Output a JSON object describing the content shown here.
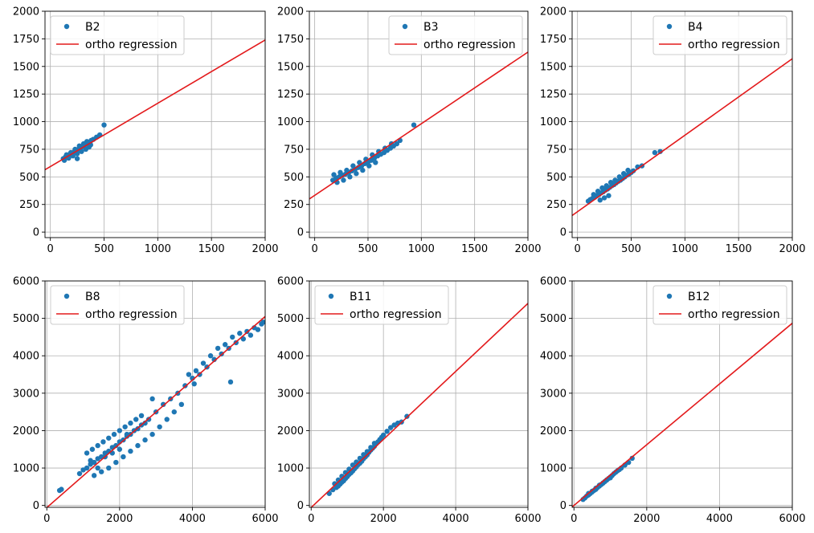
{
  "colors": {
    "scatter": "#1f77b4",
    "regression": "#e31a1c",
    "grid": "#b0b0b0",
    "axis": "#000000",
    "legend_border": "#cccccc"
  },
  "chart_data": [
    {
      "type": "scatter",
      "panel": "top-left",
      "xlim": [
        -50,
        2000
      ],
      "ylim": [
        -50,
        2000
      ],
      "xticks": [
        0,
        500,
        1000,
        1500,
        2000
      ],
      "yticks": [
        0,
        250,
        500,
        750,
        1000,
        1250,
        1500,
        1750,
        2000
      ],
      "grid": true,
      "legend_position": "top-left",
      "series": [
        {
          "name": "B2",
          "kind": "points",
          "x": [
            120,
            140,
            160,
            180,
            200,
            220,
            240,
            260,
            280,
            300,
            320,
            350,
            380,
            400,
            430,
            460,
            500,
            130,
            170,
            210,
            250,
            290,
            330,
            360,
            150,
            190,
            230,
            270,
            310,
            340,
            375,
            250
          ],
          "y": [
            665,
            680,
            690,
            705,
            715,
            725,
            740,
            750,
            760,
            775,
            790,
            810,
            830,
            840,
            860,
            880,
            970,
            650,
            670,
            690,
            710,
            730,
            750,
            770,
            700,
            720,
            750,
            780,
            800,
            820,
            790,
            665
          ]
        },
        {
          "name": "ortho regression",
          "kind": "line",
          "x": [
            -50,
            2000
          ],
          "y": [
            565,
            1740
          ]
        }
      ]
    },
    {
      "type": "scatter",
      "panel": "top-middle",
      "xlim": [
        -50,
        2000
      ],
      "ylim": [
        -50,
        2000
      ],
      "xticks": [
        0,
        500,
        1000,
        1500,
        2000
      ],
      "yticks": [
        0,
        250,
        500,
        750,
        1000,
        1250,
        1500,
        1750,
        2000
      ],
      "grid": true,
      "legend_position": "top-right",
      "series": [
        {
          "name": "B3",
          "kind": "points",
          "x": [
            170,
            200,
            230,
            260,
            290,
            320,
            350,
            380,
            410,
            440,
            470,
            500,
            530,
            560,
            590,
            620,
            650,
            680,
            710,
            740,
            770,
            800,
            930,
            180,
            240,
            300,
            360,
            420,
            480,
            540,
            600,
            660,
            720,
            210,
            270,
            330,
            390,
            450,
            510,
            570
          ],
          "y": [
            470,
            490,
            500,
            515,
            525,
            540,
            555,
            570,
            585,
            600,
            620,
            635,
            650,
            670,
            690,
            705,
            720,
            740,
            760,
            780,
            800,
            830,
            970,
            520,
            540,
            560,
            600,
            630,
            660,
            700,
            730,
            760,
            800,
            450,
            470,
            500,
            530,
            560,
            600,
            630
          ]
        },
        {
          "name": "ortho regression",
          "kind": "line",
          "x": [
            -50,
            2000
          ],
          "y": [
            300,
            1630
          ]
        }
      ]
    },
    {
      "type": "scatter",
      "panel": "top-right",
      "xlim": [
        -50,
        2000
      ],
      "ylim": [
        -50,
        2000
      ],
      "xticks": [
        0,
        500,
        1000,
        1500,
        2000
      ],
      "yticks": [
        0,
        250,
        500,
        750,
        1000,
        1250,
        1500,
        1750,
        2000
      ],
      "grid": true,
      "legend_position": "top-right",
      "series": [
        {
          "name": "B4",
          "kind": "points",
          "x": [
            100,
            120,
            140,
            160,
            180,
            200,
            220,
            240,
            260,
            280,
            300,
            320,
            340,
            360,
            380,
            400,
            420,
            440,
            460,
            480,
            500,
            520,
            560,
            600,
            720,
            770,
            150,
            190,
            230,
            270,
            310,
            350,
            390,
            430,
            470,
            210,
            250,
            290
          ],
          "y": [
            280,
            295,
            305,
            315,
            330,
            340,
            355,
            365,
            380,
            390,
            405,
            420,
            430,
            445,
            460,
            470,
            485,
            500,
            515,
            525,
            540,
            555,
            590,
            600,
            720,
            730,
            340,
            370,
            400,
            420,
            450,
            470,
            500,
            530,
            560,
            290,
            310,
            330
          ]
        },
        {
          "name": "ortho regression",
          "kind": "line",
          "x": [
            -50,
            2000
          ],
          "y": [
            150,
            1570
          ]
        }
      ]
    },
    {
      "type": "scatter",
      "panel": "bottom-left",
      "xlim": [
        -50,
        6000
      ],
      "ylim": [
        -50,
        6000
      ],
      "xticks": [
        0,
        2000,
        4000,
        6000
      ],
      "yticks": [
        0,
        1000,
        2000,
        3000,
        4000,
        5000,
        6000
      ],
      "grid": true,
      "legend_position": "top-left",
      "series": [
        {
          "name": "B8",
          "kind": "points",
          "x": [
            350,
            400,
            900,
            1000,
            1100,
            1200,
            1300,
            1400,
            1500,
            1600,
            1700,
            1800,
            1900,
            2000,
            2100,
            2200,
            2300,
            2400,
            2500,
            2600,
            2700,
            2800,
            3000,
            3200,
            3400,
            3600,
            3800,
            4000,
            4200,
            4400,
            4600,
            4800,
            5000,
            5200,
            5400,
            5600,
            5800,
            5950,
            1100,
            1250,
            1400,
            1550,
            1700,
            1850,
            2000,
            2150,
            2300,
            2450,
            2600,
            1300,
            1500,
            1700,
            1900,
            2100,
            2300,
            2500,
            2700,
            2900,
            3100,
            3300,
            3500,
            3700,
            1200,
            1400,
            1600,
            1800,
            2000,
            2200,
            4100,
            4300,
            4500,
            4700,
            4900,
            5100,
            5300,
            5500,
            5700,
            5900,
            3900,
            4050,
            5050,
            2900
          ],
          "y": [
            400,
            430,
            850,
            950,
            1000,
            1100,
            1150,
            1250,
            1300,
            1400,
            1450,
            1550,
            1600,
            1700,
            1750,
            1850,
            1900,
            2000,
            2050,
            2150,
            2200,
            2300,
            2500,
            2700,
            2850,
            3000,
            3200,
            3400,
            3500,
            3700,
            3900,
            4050,
            4200,
            4350,
            4450,
            4550,
            4700,
            4900,
            1400,
            1500,
            1600,
            1700,
            1800,
            1900,
            2000,
            2100,
            2200,
            2300,
            2400,
            800,
            900,
            1000,
            1150,
            1300,
            1450,
            1600,
            1750,
            1900,
            2100,
            2300,
            2500,
            2700,
            1200,
            1000,
            1300,
            1400,
            1500,
            1900,
            3600,
            3800,
            4000,
            4200,
            4300,
            4500,
            4600,
            4650,
            4750,
            4850,
            3500,
            3250,
            3300,
            2850
          ]
        },
        {
          "name": "ortho regression",
          "kind": "line",
          "x": [
            -50,
            6000
          ],
          "y": [
            -100,
            5050
          ]
        }
      ]
    },
    {
      "type": "scatter",
      "panel": "bottom-middle",
      "xlim": [
        -50,
        6000
      ],
      "ylim": [
        -50,
        6000
      ],
      "xticks": [
        0,
        2000,
        4000,
        6000
      ],
      "yticks": [
        0,
        1000,
        2000,
        3000,
        4000,
        5000,
        6000
      ],
      "grid": true,
      "legend_position": "top-left",
      "series": [
        {
          "name": "B11",
          "kind": "points",
          "x": [
            500,
            600,
            700,
            750,
            800,
            850,
            900,
            950,
            1000,
            1050,
            1100,
            1150,
            1200,
            1250,
            1300,
            1350,
            1400,
            1450,
            1500,
            1550,
            1600,
            1650,
            1700,
            1750,
            1800,
            1850,
            1900,
            1950,
            2000,
            2100,
            2200,
            2300,
            2400,
            2500,
            2650,
            650,
            750,
            850,
            950,
            1050,
            1150,
            1250,
            1350,
            1450,
            1550,
            1650,
            1750
          ],
          "y": [
            320,
            420,
            480,
            520,
            570,
            620,
            660,
            720,
            770,
            830,
            870,
            920,
            980,
            1030,
            1090,
            1130,
            1180,
            1250,
            1300,
            1350,
            1420,
            1480,
            1530,
            1580,
            1650,
            1700,
            1760,
            1820,
            1880,
            1980,
            2080,
            2150,
            2200,
            2230,
            2380,
            580,
            680,
            780,
            880,
            970,
            1080,
            1160,
            1260,
            1360,
            1440,
            1550,
            1660
          ]
        },
        {
          "name": "ortho regression",
          "kind": "line",
          "x": [
            -50,
            6000
          ],
          "y": [
            -100,
            5400
          ]
        }
      ]
    },
    {
      "type": "scatter",
      "panel": "bottom-right",
      "xlim": [
        -50,
        6000
      ],
      "ylim": [
        -50,
        6000
      ],
      "xticks": [
        0,
        2000,
        4000,
        6000
      ],
      "yticks": [
        0,
        1000,
        2000,
        3000,
        4000,
        5000,
        6000
      ],
      "grid": true,
      "legend_position": "top-right",
      "series": [
        {
          "name": "B12",
          "kind": "points",
          "x": [
            250,
            300,
            350,
            400,
            450,
            500,
            550,
            600,
            650,
            700,
            750,
            800,
            850,
            900,
            950,
            1000,
            1050,
            1100,
            1150,
            1200,
            1250,
            1300,
            1400,
            1500,
            1600,
            400,
            500,
            600,
            700,
            800,
            900,
            1000
          ],
          "y": [
            160,
            200,
            250,
            280,
            320,
            360,
            400,
            430,
            480,
            520,
            560,
            600,
            640,
            680,
            720,
            760,
            800,
            850,
            890,
            930,
            960,
            1000,
            1080,
            1150,
            1260,
            320,
            380,
            460,
            540,
            600,
            680,
            740
          ]
        },
        {
          "name": "ortho regression",
          "kind": "line",
          "x": [
            -50,
            6000
          ],
          "y": [
            -40,
            4870
          ]
        }
      ]
    }
  ]
}
